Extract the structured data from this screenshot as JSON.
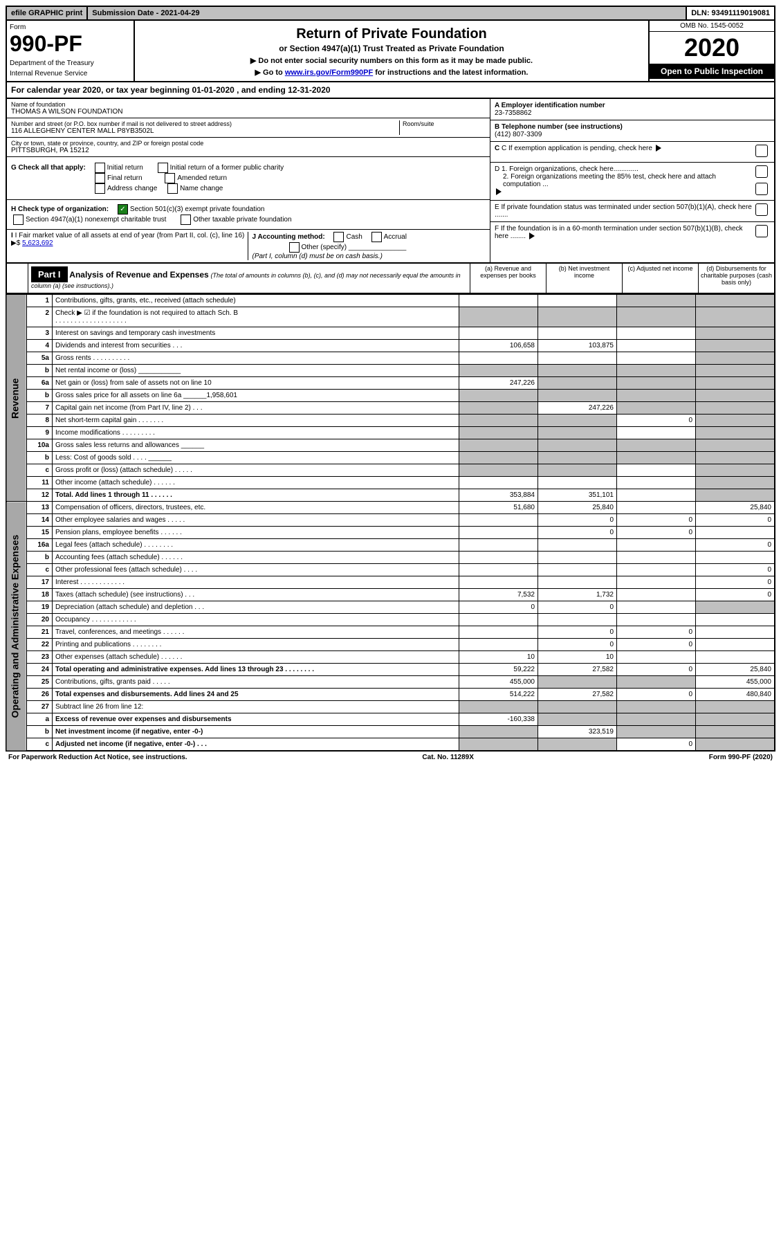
{
  "topbar": {
    "efile": "efile GRAPHIC print",
    "submission": "Submission Date - 2021-04-29",
    "dln": "DLN: 93491119019081"
  },
  "header": {
    "form_label": "Form",
    "form_number": "990-PF",
    "dept1": "Department of the Treasury",
    "dept2": "Internal Revenue Service",
    "title": "Return of Private Foundation",
    "subtitle": "or Section 4947(a)(1) Trust Treated as Private Foundation",
    "note1": "▶ Do not enter social security numbers on this form as it may be made public.",
    "note2_pre": "▶ Go to ",
    "note2_link": "www.irs.gov/Form990PF",
    "note2_post": " for instructions and the latest information.",
    "omb": "OMB No. 1545-0052",
    "year": "2020",
    "open": "Open to Public Inspection"
  },
  "calyear": "For calendar year 2020, or tax year beginning 01-01-2020                                     , and ending 12-31-2020",
  "info": {
    "name_label": "Name of foundation",
    "name": "THOMAS A WILSON FOUNDATION",
    "addr_label": "Number and street (or P.O. box number if mail is not delivered to street address)",
    "addr": "116 ALLEGHENY CENTER MALL P8YB3502L",
    "room_label": "Room/suite",
    "city_label": "City or town, state or province, country, and ZIP or foreign postal code",
    "city": "PITTSBURGH, PA  15212",
    "ein_label": "A Employer identification number",
    "ein": "23-7358862",
    "phone_label": "B Telephone number (see instructions)",
    "phone": "(412) 807-3309",
    "c": "C If exemption application is pending, check here",
    "d1": "D 1. Foreign organizations, check here.............",
    "d2": "2. Foreign organizations meeting the 85% test, check here and attach computation ...",
    "e": "E  If private foundation status was terminated under section 507(b)(1)(A), check here .......",
    "f": "F  If the foundation is in a 60-month termination under section 507(b)(1)(B), check here ........"
  },
  "checks": {
    "g_label": "G Check all that apply:",
    "g_opts": [
      "Initial return",
      "Initial return of a former public charity",
      "Final return",
      "Amended return",
      "Address change",
      "Name change"
    ],
    "h_label": "H Check type of organization:",
    "h1": "Section 501(c)(3) exempt private foundation",
    "h2": "Section 4947(a)(1) nonexempt charitable trust",
    "h3": "Other taxable private foundation",
    "i_label": "I Fair market value of all assets at end of year (from Part II, col. (c), line 16) ▶$ ",
    "i_value": "5,623,692",
    "j_label": "J Accounting method:",
    "j_opts": [
      "Cash",
      "Accrual"
    ],
    "j_other": "Other (specify)",
    "j_note": "(Part I, column (d) must be on cash basis.)"
  },
  "part1": {
    "label": "Part I",
    "title": "Analysis of Revenue and Expenses",
    "subtitle": "(The total of amounts in columns (b), (c), and (d) may not necessarily equal the amounts in column (a) (see instructions).)",
    "col_a": "(a)    Revenue and expenses per books",
    "col_b": "(b)   Net investment income",
    "col_c": "(c)   Adjusted net income",
    "col_d": "(d)   Disbursements for charitable purposes (cash basis only)"
  },
  "sections": {
    "revenue": "Revenue",
    "expenses": "Operating and Administrative Expenses"
  },
  "rows": [
    {
      "n": "1",
      "d": "Contributions, gifts, grants, etc., received (attach schedule)",
      "a": "",
      "b": "",
      "cS": true,
      "dS": true
    },
    {
      "n": "2",
      "d": "Check ▶ ☑ if the foundation is not required to attach Sch. B",
      "sub": ". . . . . . . . . . . . . . . . . . .",
      "aS": true,
      "bS": true,
      "cS": true,
      "dS": true
    },
    {
      "n": "3",
      "d": "Interest on savings and temporary cash investments",
      "a": "",
      "b": "",
      "c": "",
      "dS": true
    },
    {
      "n": "4",
      "d": "Dividends and interest from securities    .    .    .",
      "a": "106,658",
      "b": "103,875",
      "c": "",
      "dS": true
    },
    {
      "n": "5a",
      "d": "Gross rents     .    .    .    .    .    .    .    .    .    .",
      "a": "",
      "b": "",
      "c": "",
      "dS": true
    },
    {
      "n": "b",
      "d": "Net rental income or (loss)  ___________",
      "aS": true,
      "bS": true,
      "cS": true,
      "dS": true
    },
    {
      "n": "6a",
      "d": "Net gain or (loss) from sale of assets not on line 10",
      "a": "247,226",
      "bS": true,
      "cS": true,
      "dS": true
    },
    {
      "n": "b",
      "d": "Gross sales price for all assets on line 6a ______1,958,601",
      "aS": true,
      "bS": true,
      "cS": true,
      "dS": true
    },
    {
      "n": "7",
      "d": "Capital gain net income (from Part IV, line 2)    .    .    .",
      "aS": true,
      "b": "247,226",
      "cS": true,
      "dS": true
    },
    {
      "n": "8",
      "d": "Net short-term capital gain   .    .    .    .    .    .    .",
      "aS": true,
      "bS": true,
      "c": "0",
      "dS": true
    },
    {
      "n": "9",
      "d": "Income modifications .    .    .    .    .    .    .    .    .",
      "aS": true,
      "bS": true,
      "c": "",
      "dS": true
    },
    {
      "n": "10a",
      "d": "Gross sales less returns and allowances  ______",
      "aS": true,
      "bS": true,
      "cS": true,
      "dS": true
    },
    {
      "n": "b",
      "d": "Less: Cost of goods sold      .    .    .    .  ______",
      "aS": true,
      "bS": true,
      "cS": true,
      "dS": true
    },
    {
      "n": "c",
      "d": "Gross profit or (loss) (attach schedule)    .    .    .    .    .",
      "aS": true,
      "bS": true,
      "c": "",
      "dS": true
    },
    {
      "n": "11",
      "d": "Other income (attach schedule)    .    .    .    .    .    .",
      "a": "",
      "b": "",
      "c": "",
      "dS": true
    },
    {
      "n": "12",
      "d": "Total. Add lines 1 through 11    .    .    .    .    .    .",
      "bold": true,
      "a": "353,884",
      "b": "351,101",
      "c": "",
      "dS": true
    },
    {
      "n": "13",
      "d": "Compensation of officers, directors, trustees, etc.",
      "a": "51,680",
      "b": "25,840",
      "c": "",
      "dv": "25,840"
    },
    {
      "n": "14",
      "d": "Other employee salaries and wages     .    .    .    .    .",
      "a": "",
      "b": "0",
      "c": "0",
      "dv": "0"
    },
    {
      "n": "15",
      "d": "Pension plans, employee benefits   .    .    .    .    .    .",
      "a": "",
      "b": "0",
      "c": "0",
      "dv": ""
    },
    {
      "n": "16a",
      "d": "Legal fees (attach schedule) .    .    .    .    .    .    .    .",
      "a": "",
      "b": "",
      "c": "",
      "dv": "0"
    },
    {
      "n": "b",
      "d": "Accounting fees (attach schedule)  .    .    .    .    .    .",
      "a": "",
      "b": "",
      "c": "",
      "dv": ""
    },
    {
      "n": "c",
      "d": "Other professional fees (attach schedule)     .    .    .    .",
      "a": "",
      "b": "",
      "c": "",
      "dv": "0"
    },
    {
      "n": "17",
      "d": "Interest   .    .    .    .    .    .    .    .    .    .    .    .",
      "a": "",
      "b": "",
      "c": "",
      "dv": "0"
    },
    {
      "n": "18",
      "d": "Taxes (attach schedule) (see instructions)     .    .    .",
      "a": "7,532",
      "b": "1,732",
      "c": "",
      "dv": "0"
    },
    {
      "n": "19",
      "d": "Depreciation (attach schedule) and depletion    .    .    .",
      "a": "0",
      "b": "0",
      "c": "",
      "dS": true
    },
    {
      "n": "20",
      "d": "Occupancy .    .    .    .    .    .    .    .    .    .    .    .",
      "a": "",
      "b": "",
      "c": "",
      "dv": ""
    },
    {
      "n": "21",
      "d": "Travel, conferences, and meetings  .    .    .    .    .    .",
      "a": "",
      "b": "0",
      "c": "0",
      "dv": ""
    },
    {
      "n": "22",
      "d": "Printing and publications  .    .    .    .    .    .    .    .",
      "a": "",
      "b": "0",
      "c": "0",
      "dv": ""
    },
    {
      "n": "23",
      "d": "Other expenses (attach schedule)   .    .    .    .    .    .",
      "a": "10",
      "b": "10",
      "c": "",
      "dv": ""
    },
    {
      "n": "24",
      "d": "Total operating and administrative expenses. Add lines 13 through 23    .    .    .    .    .    .    .    .",
      "bold": true,
      "a": "59,222",
      "b": "27,582",
      "c": "0",
      "dv": "25,840"
    },
    {
      "n": "25",
      "d": "Contributions, gifts, grants paid      .    .    .    .    .",
      "a": "455,000",
      "bS": true,
      "cS": true,
      "dv": "455,000"
    },
    {
      "n": "26",
      "d": "Total expenses and disbursements. Add lines 24 and 25",
      "bold": true,
      "a": "514,222",
      "b": "27,582",
      "c": "0",
      "dv": "480,840"
    },
    {
      "n": "27",
      "d": "Subtract line 26 from line 12:",
      "aS": true,
      "bS": true,
      "cS": true,
      "dS": true
    },
    {
      "n": "a",
      "d": "Excess of revenue over expenses and disbursements",
      "bold": true,
      "a": "-160,338",
      "bS": true,
      "cS": true,
      "dS": true
    },
    {
      "n": "b",
      "d": "Net investment income (if negative, enter -0-)",
      "bold": true,
      "aS": true,
      "b": "323,519",
      "cS": true,
      "dS": true
    },
    {
      "n": "c",
      "d": "Adjusted net income (if negative, enter -0-)    .    .    .",
      "bold": true,
      "aS": true,
      "bS": true,
      "c": "0",
      "dS": true
    }
  ],
  "footer": {
    "left": "For Paperwork Reduction Act Notice, see instructions.",
    "center": "Cat. No. 11289X",
    "right": "Form 990-PF (2020)"
  }
}
